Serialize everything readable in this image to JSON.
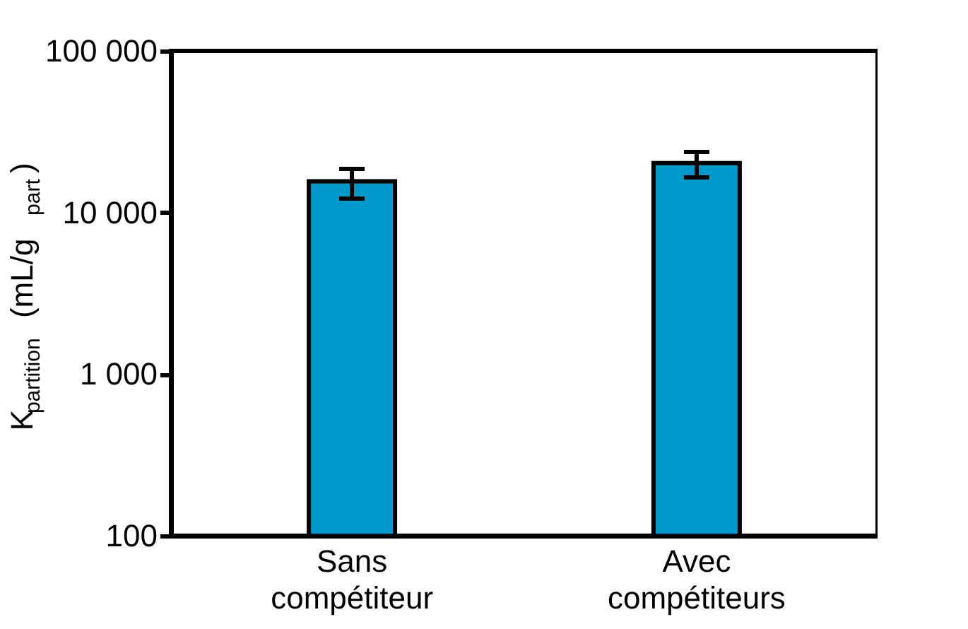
{
  "chart_data": {
    "type": "bar",
    "ylabel": "K$_{partition}$ (mL/g$_{part}$)",
    "categories": [
      "Sans compétiteur",
      "Avec compétiteurs"
    ],
    "values": [
      15600,
      20200
    ],
    "errors": [
      [
        12200,
        18600
      ],
      [
        16500,
        23700
      ]
    ],
    "color": "#0099cc",
    "log": true,
    "ylim": [
      100,
      100000
    ],
    "yticks": [
      100,
      {
        "value": 1000,
        "label": "1 000"
      },
      {
        "value": 10000,
        "label": "10 000"
      },
      {
        "value": 100000,
        "label": "100 000"
      }
    ],
    "grid": false
  }
}
